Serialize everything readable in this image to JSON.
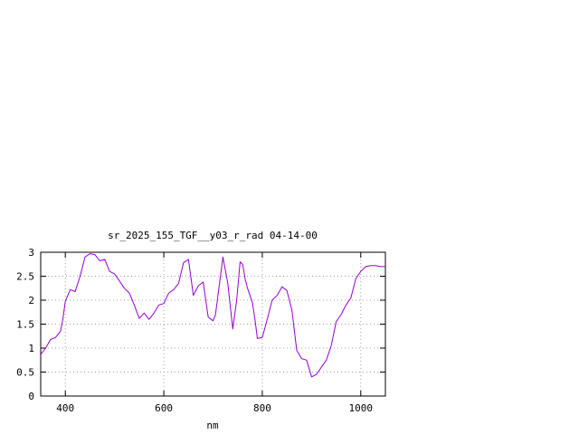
{
  "chart_data": {
    "type": "line",
    "title": "sr_2025_155_TGF__y03_r_rad 04-14-00",
    "xlabel": "nm",
    "ylabel": "",
    "xlim": [
      350,
      1050
    ],
    "ylim": [
      0,
      3
    ],
    "x_ticks": [
      400,
      600,
      800,
      1000
    ],
    "x_tick_labels": [
      "400",
      "600",
      "800",
      "1000"
    ],
    "y_ticks": [
      0,
      0.5,
      1,
      1.5,
      2,
      2.5,
      3
    ],
    "y_tick_labels": [
      "0",
      "0.5",
      "1",
      "1.5",
      "2",
      "2.5",
      "3"
    ],
    "grid": true,
    "legend": "none",
    "series": [
      {
        "color": "#9400d3",
        "x": [
          350,
          360,
          370,
          380,
          390,
          395,
          400,
          410,
          420,
          430,
          440,
          450,
          460,
          470,
          480,
          490,
          500,
          510,
          520,
          530,
          540,
          550,
          560,
          570,
          580,
          590,
          600,
          610,
          620,
          630,
          640,
          650,
          660,
          670,
          680,
          690,
          700,
          705,
          710,
          715,
          720,
          730,
          740,
          748,
          755,
          760,
          765,
          770,
          775,
          780,
          785,
          790,
          800,
          810,
          820,
          830,
          840,
          850,
          860,
          870,
          880,
          890,
          900,
          910,
          920,
          930,
          940,
          950,
          960,
          970,
          980,
          990,
          1000,
          1010,
          1020,
          1030,
          1040,
          1050
        ],
        "y": [
          0.87,
          1.0,
          1.18,
          1.22,
          1.35,
          1.6,
          1.98,
          2.22,
          2.18,
          2.5,
          2.9,
          2.97,
          2.95,
          2.82,
          2.85,
          2.6,
          2.55,
          2.4,
          2.25,
          2.15,
          1.9,
          1.62,
          1.73,
          1.6,
          1.73,
          1.9,
          1.93,
          2.15,
          2.22,
          2.35,
          2.78,
          2.85,
          2.1,
          2.3,
          2.38,
          1.65,
          1.57,
          1.7,
          2.1,
          2.5,
          2.9,
          2.35,
          1.4,
          2.0,
          2.8,
          2.75,
          2.45,
          2.25,
          2.1,
          1.95,
          1.6,
          1.2,
          1.22,
          1.6,
          2.0,
          2.1,
          2.28,
          2.2,
          1.8,
          0.95,
          0.78,
          0.75,
          0.4,
          0.45,
          0.6,
          0.75,
          1.05,
          1.55,
          1.7,
          1.9,
          2.05,
          2.45,
          2.6,
          2.7,
          2.72,
          2.72,
          2.7,
          2.7
        ]
      }
    ]
  }
}
